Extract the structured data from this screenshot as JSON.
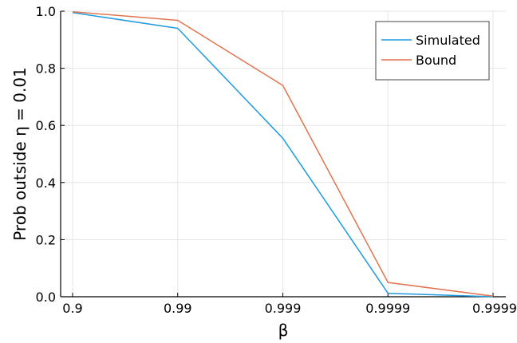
{
  "chart_data": {
    "type": "line",
    "xlabel": "β",
    "ylabel": "Prob outside η = 0.01",
    "x": [
      "0.9",
      "0.99",
      "0.999",
      "0.9999",
      "0.99999"
    ],
    "x_ticks": [
      "0.9",
      "0.99",
      "0.999",
      "0.9999",
      "0.99999"
    ],
    "y_ticks": [
      "0.0",
      "0.2",
      "0.4",
      "0.6",
      "0.8",
      "1.0"
    ],
    "ylim": [
      0,
      1
    ],
    "grid": true,
    "legend_position": "top-right",
    "series": [
      {
        "name": "Simulated",
        "color": "#1f9bde",
        "values": [
          0.995,
          0.94,
          0.555,
          0.012,
          0.0
        ]
      },
      {
        "name": "Bound",
        "color": "#e0754f",
        "values": [
          0.998,
          0.968,
          0.74,
          0.05,
          0.002
        ]
      }
    ]
  }
}
